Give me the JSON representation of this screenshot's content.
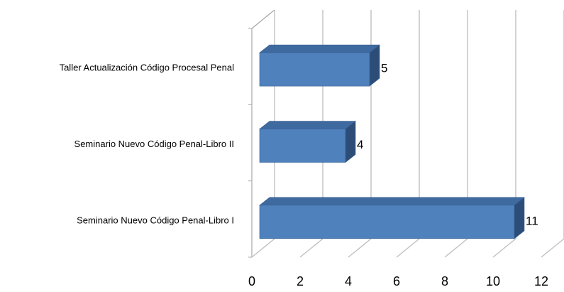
{
  "chart_data": {
    "type": "bar",
    "orientation": "horizontal",
    "three_d": true,
    "categories": [
      "Taller Actualización Código Procesal Penal",
      "Seminario Nuevo Código Penal-Libro II",
      "Seminario Nuevo Código Penal-Libro I"
    ],
    "values": [
      5,
      4,
      11
    ],
    "data_labels": [
      "5",
      "4",
      "11"
    ],
    "xlim": [
      0,
      12
    ],
    "xticks": [
      0,
      2,
      4,
      6,
      8,
      10,
      12
    ],
    "xtick_labels": [
      "0",
      "2",
      "4",
      "6",
      "8",
      "10",
      "12"
    ],
    "grid": true,
    "legend": "none",
    "colors": {
      "bar_front": "#4f81bd",
      "bar_top": "#3f6aa0",
      "bar_side": "#2c4d78",
      "bar_edge": "#3a5f8f",
      "grid": "#c0c0c0",
      "axis": "#a6a6a6"
    }
  }
}
